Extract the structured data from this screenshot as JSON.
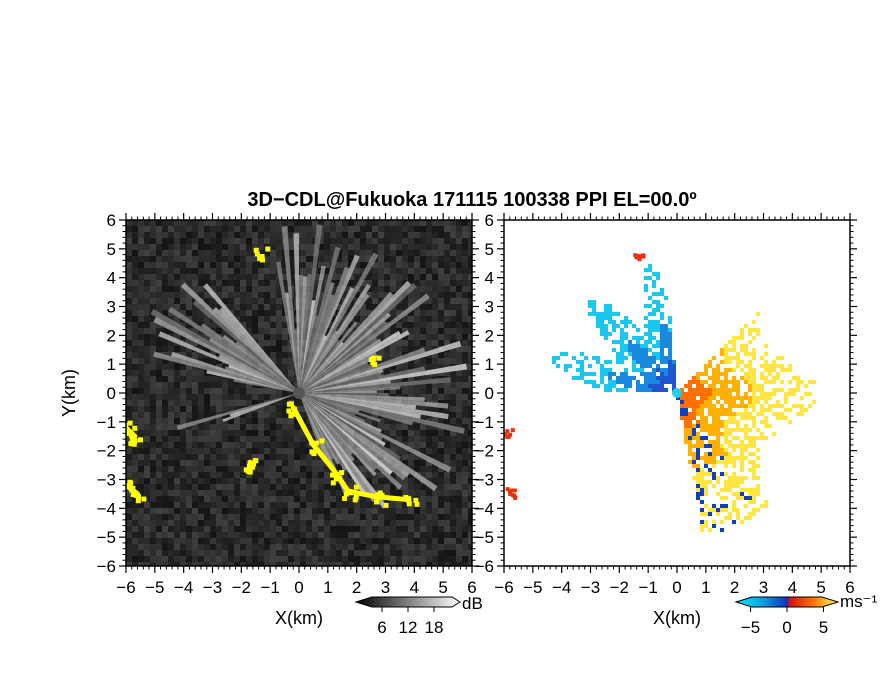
{
  "title": "3D−CDL@Fukuoka 171115 100338 PPI EL=00.0º",
  "chart_data": [
    {
      "type": "heatmap",
      "panel": "left",
      "title": "",
      "xlabel": "X(km)",
      "ylabel": "Y(km)",
      "xlim": [
        -6,
        6
      ],
      "ylim": [
        -6,
        6
      ],
      "xticks": [
        "−6",
        "−5",
        "−4",
        "−3",
        "−2",
        "−1",
        "0",
        "1",
        "2",
        "3",
        "4",
        "5",
        "6"
      ],
      "yticks": [
        "−6",
        "−5",
        "−4",
        "−3",
        "−2",
        "−1",
        "0",
        "1",
        "2",
        "3",
        "4",
        "5",
        "6"
      ],
      "colorbar": {
        "unit": "dB",
        "ticks": [
          "6",
          "12",
          "18"
        ],
        "tick_values": [
          6,
          12,
          18
        ],
        "range": [
          0,
          24
        ]
      },
      "highlight_color": "#ffff00",
      "highlight_regions_km": [
        {
          "x": [
            -0.2,
            0.5,
            1.3,
            1.7,
            2.7,
            3.8
          ],
          "y": [
            -0.5,
            -1.8,
            -2.8,
            -3.4,
            -3.6,
            -3.7
          ]
        },
        {
          "x": [
            -6.0,
            -5.7
          ],
          "y": [
            -1.2,
            -1.5
          ]
        },
        {
          "x": [
            -6.0,
            -5.6
          ],
          "y": [
            -3.2,
            -3.5
          ]
        },
        {
          "x": [
            -1.7,
            -1.6
          ],
          "y": [
            -2.4,
            -2.5
          ]
        },
        {
          "x": [
            2.5
          ],
          "y": [
            1.1
          ]
        },
        {
          "x": [
            -1.4
          ],
          "y": [
            4.9
          ]
        }
      ]
    },
    {
      "type": "heatmap",
      "panel": "right",
      "title": "",
      "xlabel": "X(km)",
      "xlim": [
        -6,
        6
      ],
      "ylim": [
        -6,
        6
      ],
      "xticks": [
        "−6",
        "−5",
        "−4",
        "−3",
        "−2",
        "−1",
        "0",
        "1",
        "2",
        "3",
        "4",
        "5",
        "6"
      ],
      "yticks": [
        "−6",
        "−5",
        "−4",
        "−3",
        "−2",
        "−1",
        "0",
        "1",
        "2",
        "3",
        "4",
        "5",
        "6"
      ],
      "colorbar": {
        "unit": "ms⁻¹",
        "ticks": [
          "−5",
          "0",
          "5"
        ],
        "tick_values": [
          -5,
          0,
          5
        ],
        "range": [
          -7,
          7
        ]
      },
      "approach_sector_deg": [
        90,
        200
      ],
      "recede_sector_deg": [
        -90,
        40
      ],
      "colors": {
        "approach": "#1e7bd6",
        "recede": "#f5a400",
        "edge_recede": "#e83010",
        "edge_approach": "#1040c0"
      }
    }
  ]
}
